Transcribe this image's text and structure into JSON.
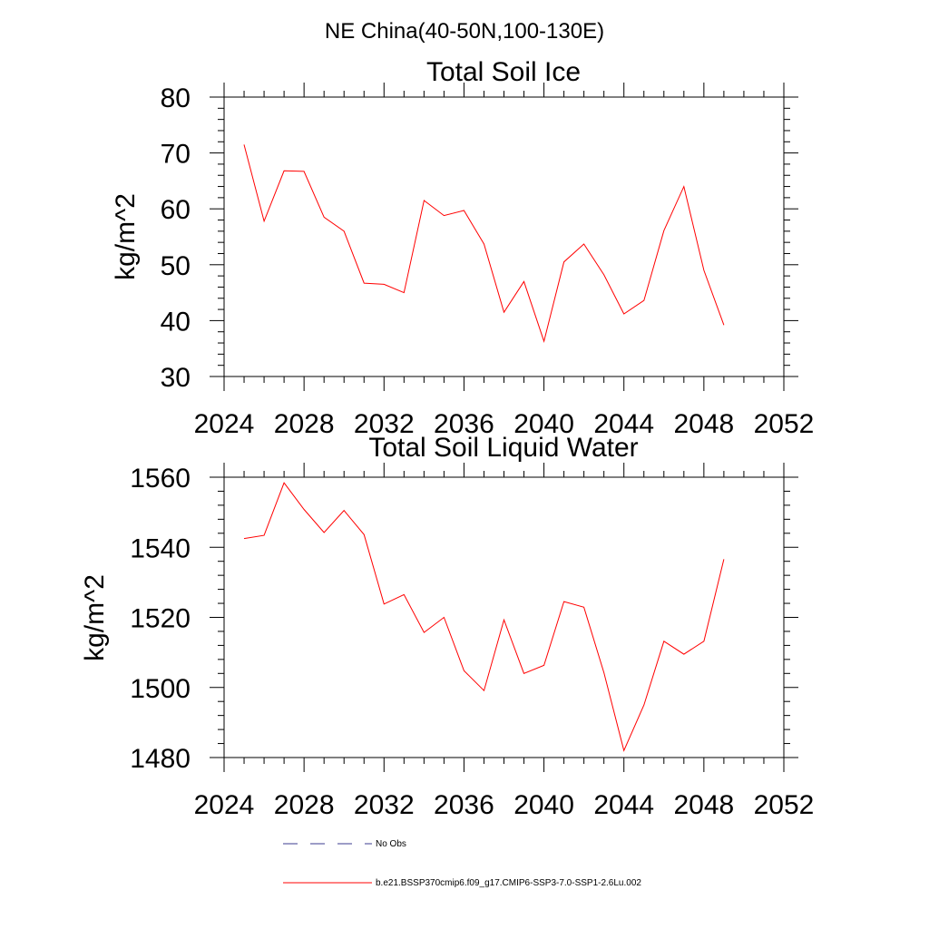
{
  "page_title": "NE China(40-50N,100-130E)",
  "chart_data": [
    {
      "type": "line",
      "title": "Total Soil Ice",
      "xlabel": "",
      "ylabel": "kg/m^2",
      "xlim": [
        2024,
        2052
      ],
      "ylim": [
        30,
        80
      ],
      "xticks": [
        2024,
        2028,
        2032,
        2036,
        2040,
        2044,
        2048,
        2052
      ],
      "yticks": [
        30,
        40,
        50,
        60,
        70,
        80
      ],
      "grid": false,
      "series": [
        {
          "name": "b.e21.BSSP370cmip6.f09_g17.CMIP6-SSP3-7.0-SSP1-2.6Lu.002",
          "color": "#ff0000",
          "x": [
            2025,
            2026,
            2027,
            2028,
            2029,
            2030,
            2031,
            2032,
            2033,
            2034,
            2035,
            2036,
            2037,
            2038,
            2039,
            2040,
            2041,
            2042,
            2043,
            2044,
            2045,
            2046,
            2047,
            2048,
            2049
          ],
          "y": [
            71.5,
            57.8,
            66.8,
            66.7,
            58.5,
            56.0,
            46.7,
            46.5,
            45.0,
            61.5,
            58.8,
            59.7,
            53.7,
            41.5,
            47.0,
            36.3,
            50.5,
            53.7,
            48.2,
            41.2,
            43.6,
            56.1,
            64.0,
            49.0,
            39.2
          ]
        }
      ]
    },
    {
      "type": "line",
      "title": "Total Soil Liquid Water",
      "xlabel": "",
      "ylabel": "kg/m^2",
      "xlim": [
        2024,
        2052
      ],
      "ylim": [
        1480,
        1560
      ],
      "xticks": [
        2024,
        2028,
        2032,
        2036,
        2040,
        2044,
        2048,
        2052
      ],
      "yticks": [
        1480,
        1500,
        1520,
        1540,
        1560
      ],
      "grid": false,
      "series": [
        {
          "name": "b.e21.BSSP370cmip6.f09_g17.CMIP6-SSP3-7.0-SSP1-2.6Lu.002",
          "color": "#ff0000",
          "x": [
            2025,
            2026,
            2027,
            2028,
            2029,
            2030,
            2031,
            2032,
            2033,
            2034,
            2035,
            2036,
            2037,
            2038,
            2039,
            2040,
            2041,
            2042,
            2043,
            2044,
            2045,
            2046,
            2047,
            2048,
            2049
          ],
          "y": [
            1542.5,
            1543.4,
            1558.4,
            1550.8,
            1544.2,
            1550.5,
            1543.6,
            1523.8,
            1526.5,
            1515.7,
            1520.0,
            1504.8,
            1499.1,
            1519.3,
            1504.0,
            1506.3,
            1524.5,
            1522.9,
            1504.2,
            1482.0,
            1495.0,
            1513.2,
            1509.5,
            1513.2,
            1536.6
          ]
        }
      ]
    }
  ],
  "legend": {
    "placement": "bottom",
    "items": [
      {
        "label": "No Obs",
        "color": "#3b3b8f",
        "dash": "dashed"
      },
      {
        "label": "b.e21.BSSP370cmip6.f09_g17.CMIP6-SSP3-7.0-SSP1-2.6Lu.002",
        "color": "#ff0000",
        "dash": "solid"
      }
    ]
  }
}
